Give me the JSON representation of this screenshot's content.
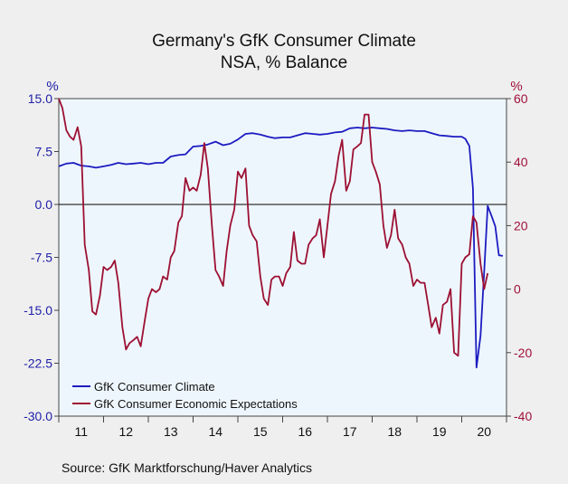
{
  "chart_data": {
    "type": "line",
    "title": "Germany's GfK Consumer Climate",
    "subtitle": "NSA, % Balance",
    "left_axis": {
      "unit_label": "%",
      "range": [
        -30,
        15
      ],
      "ticks": [
        "15.0",
        "7.5",
        "0.0",
        "-7.5",
        "-15.0",
        "-22.5",
        "-30.0"
      ],
      "tick_values": [
        15,
        7.5,
        0,
        -7.5,
        -15,
        -22.5,
        -30
      ],
      "color": "#2020a8"
    },
    "right_axis": {
      "unit_label": "%",
      "range": [
        -40,
        60
      ],
      "ticks": [
        "60",
        "40",
        "20",
        "0",
        "-20",
        "-40"
      ],
      "tick_values": [
        60,
        40,
        20,
        0,
        -20,
        -40
      ],
      "color": "#a0103a"
    },
    "x_axis": {
      "labels": [
        "11",
        "12",
        "13",
        "14",
        "15",
        "16",
        "17",
        "18",
        "19",
        "20"
      ],
      "range": [
        2011.0,
        2021.0
      ]
    },
    "zero_line": 0,
    "legend_position": "bottom-left",
    "grid": false,
    "series": [
      {
        "name": "GfK Consumer Climate",
        "axis": "left",
        "color": "#1c1cc0",
        "points": [
          [
            2011.0,
            5.4
          ],
          [
            2011.17,
            5.8
          ],
          [
            2011.33,
            5.9
          ],
          [
            2011.5,
            5.5
          ],
          [
            2011.67,
            5.4
          ],
          [
            2011.83,
            5.2
          ],
          [
            2012.0,
            5.4
          ],
          [
            2012.17,
            5.6
          ],
          [
            2012.33,
            5.9
          ],
          [
            2012.5,
            5.7
          ],
          [
            2012.67,
            5.8
          ],
          [
            2012.83,
            5.9
          ],
          [
            2013.0,
            5.7
          ],
          [
            2013.17,
            5.9
          ],
          [
            2013.33,
            5.9
          ],
          [
            2013.5,
            6.8
          ],
          [
            2013.67,
            7.0
          ],
          [
            2013.83,
            7.1
          ],
          [
            2014.0,
            8.2
          ],
          [
            2014.17,
            8.3
          ],
          [
            2014.33,
            8.5
          ],
          [
            2014.5,
            8.9
          ],
          [
            2014.67,
            8.4
          ],
          [
            2014.83,
            8.6
          ],
          [
            2015.0,
            9.2
          ],
          [
            2015.17,
            10.0
          ],
          [
            2015.33,
            10.1
          ],
          [
            2015.5,
            9.9
          ],
          [
            2015.67,
            9.6
          ],
          [
            2015.83,
            9.4
          ],
          [
            2016.0,
            9.5
          ],
          [
            2016.17,
            9.5
          ],
          [
            2016.33,
            9.8
          ],
          [
            2016.5,
            10.1
          ],
          [
            2016.67,
            10.0
          ],
          [
            2016.83,
            9.9
          ],
          [
            2017.0,
            10.0
          ],
          [
            2017.17,
            10.2
          ],
          [
            2017.33,
            10.3
          ],
          [
            2017.5,
            10.8
          ],
          [
            2017.67,
            10.9
          ],
          [
            2017.83,
            10.8
          ],
          [
            2018.0,
            10.9
          ],
          [
            2018.17,
            10.8
          ],
          [
            2018.33,
            10.7
          ],
          [
            2018.5,
            10.5
          ],
          [
            2018.67,
            10.4
          ],
          [
            2018.83,
            10.5
          ],
          [
            2019.0,
            10.4
          ],
          [
            2019.17,
            10.4
          ],
          [
            2019.33,
            10.1
          ],
          [
            2019.5,
            9.8
          ],
          [
            2019.67,
            9.7
          ],
          [
            2019.83,
            9.6
          ],
          [
            2020.0,
            9.6
          ],
          [
            2020.08,
            9.3
          ],
          [
            2020.17,
            8.3
          ],
          [
            2020.25,
            2.3
          ],
          [
            2020.33,
            -23.1
          ],
          [
            2020.42,
            -18.6
          ],
          [
            2020.5,
            -9.6
          ],
          [
            2020.58,
            -0.2
          ],
          [
            2020.67,
            -1.7
          ],
          [
            2020.75,
            -3.1
          ],
          [
            2020.83,
            -7.2
          ],
          [
            2020.92,
            -7.3
          ]
        ]
      },
      {
        "name": "GfK Consumer Economic Expectations",
        "axis": "right",
        "color": "#9c1033",
        "points": [
          [
            2011.0,
            60
          ],
          [
            2011.08,
            57
          ],
          [
            2011.17,
            50
          ],
          [
            2011.25,
            48
          ],
          [
            2011.33,
            47
          ],
          [
            2011.42,
            51
          ],
          [
            2011.5,
            45
          ],
          [
            2011.58,
            14
          ],
          [
            2011.67,
            6
          ],
          [
            2011.75,
            -7
          ],
          [
            2011.83,
            -8
          ],
          [
            2011.92,
            -2
          ],
          [
            2012.0,
            7
          ],
          [
            2012.08,
            6
          ],
          [
            2012.17,
            7
          ],
          [
            2012.25,
            9
          ],
          [
            2012.33,
            2
          ],
          [
            2012.42,
            -12
          ],
          [
            2012.5,
            -19
          ],
          [
            2012.58,
            -17
          ],
          [
            2012.67,
            -16
          ],
          [
            2012.75,
            -15
          ],
          [
            2012.83,
            -18
          ],
          [
            2012.92,
            -10
          ],
          [
            2013.0,
            -3
          ],
          [
            2013.08,
            0
          ],
          [
            2013.17,
            -1
          ],
          [
            2013.25,
            0
          ],
          [
            2013.33,
            4
          ],
          [
            2013.42,
            3
          ],
          [
            2013.5,
            10
          ],
          [
            2013.58,
            12
          ],
          [
            2013.67,
            21
          ],
          [
            2013.75,
            23
          ],
          [
            2013.83,
            35
          ],
          [
            2013.92,
            31
          ],
          [
            2014.0,
            32
          ],
          [
            2014.08,
            31
          ],
          [
            2014.17,
            36
          ],
          [
            2014.25,
            46
          ],
          [
            2014.33,
            38
          ],
          [
            2014.42,
            20
          ],
          [
            2014.5,
            6
          ],
          [
            2014.58,
            4
          ],
          [
            2014.67,
            1
          ],
          [
            2014.75,
            12
          ],
          [
            2014.83,
            20
          ],
          [
            2014.92,
            25
          ],
          [
            2015.0,
            37
          ],
          [
            2015.08,
            35
          ],
          [
            2015.17,
            38
          ],
          [
            2015.25,
            20
          ],
          [
            2015.33,
            17
          ],
          [
            2015.42,
            15
          ],
          [
            2015.5,
            4
          ],
          [
            2015.58,
            -3
          ],
          [
            2015.67,
            -5
          ],
          [
            2015.75,
            3
          ],
          [
            2015.83,
            4
          ],
          [
            2015.92,
            4
          ],
          [
            2016.0,
            1
          ],
          [
            2016.08,
            5
          ],
          [
            2016.17,
            7
          ],
          [
            2016.25,
            18
          ],
          [
            2016.33,
            9
          ],
          [
            2016.42,
            8
          ],
          [
            2016.5,
            8
          ],
          [
            2016.58,
            14
          ],
          [
            2016.67,
            16
          ],
          [
            2016.75,
            17
          ],
          [
            2016.83,
            22
          ],
          [
            2016.92,
            10
          ],
          [
            2017.0,
            20
          ],
          [
            2017.08,
            30
          ],
          [
            2017.17,
            34
          ],
          [
            2017.25,
            42
          ],
          [
            2017.33,
            47
          ],
          [
            2017.42,
            31
          ],
          [
            2017.5,
            34
          ],
          [
            2017.58,
            44
          ],
          [
            2017.67,
            45
          ],
          [
            2017.75,
            46
          ],
          [
            2017.83,
            55
          ],
          [
            2017.92,
            55
          ],
          [
            2018.0,
            40
          ],
          [
            2018.08,
            37
          ],
          [
            2018.17,
            33
          ],
          [
            2018.25,
            20
          ],
          [
            2018.33,
            13
          ],
          [
            2018.42,
            17
          ],
          [
            2018.5,
            25
          ],
          [
            2018.58,
            16
          ],
          [
            2018.67,
            14
          ],
          [
            2018.75,
            10
          ],
          [
            2018.83,
            8
          ],
          [
            2018.92,
            1
          ],
          [
            2019.0,
            3
          ],
          [
            2019.08,
            2
          ],
          [
            2019.17,
            2
          ],
          [
            2019.25,
            -5
          ],
          [
            2019.33,
            -12
          ],
          [
            2019.42,
            -9
          ],
          [
            2019.5,
            -14
          ],
          [
            2019.58,
            -5
          ],
          [
            2019.67,
            -4
          ],
          [
            2019.75,
            0
          ],
          [
            2019.83,
            -20
          ],
          [
            2019.92,
            -21
          ],
          [
            2020.0,
            8
          ],
          [
            2020.08,
            10
          ],
          [
            2020.17,
            11
          ],
          [
            2020.25,
            23
          ],
          [
            2020.33,
            21
          ],
          [
            2020.42,
            8
          ],
          [
            2020.5,
            0
          ],
          [
            2020.58,
            5
          ]
        ]
      }
    ],
    "source": "Source:  GfK Marktforschung/Haver Analytics"
  }
}
